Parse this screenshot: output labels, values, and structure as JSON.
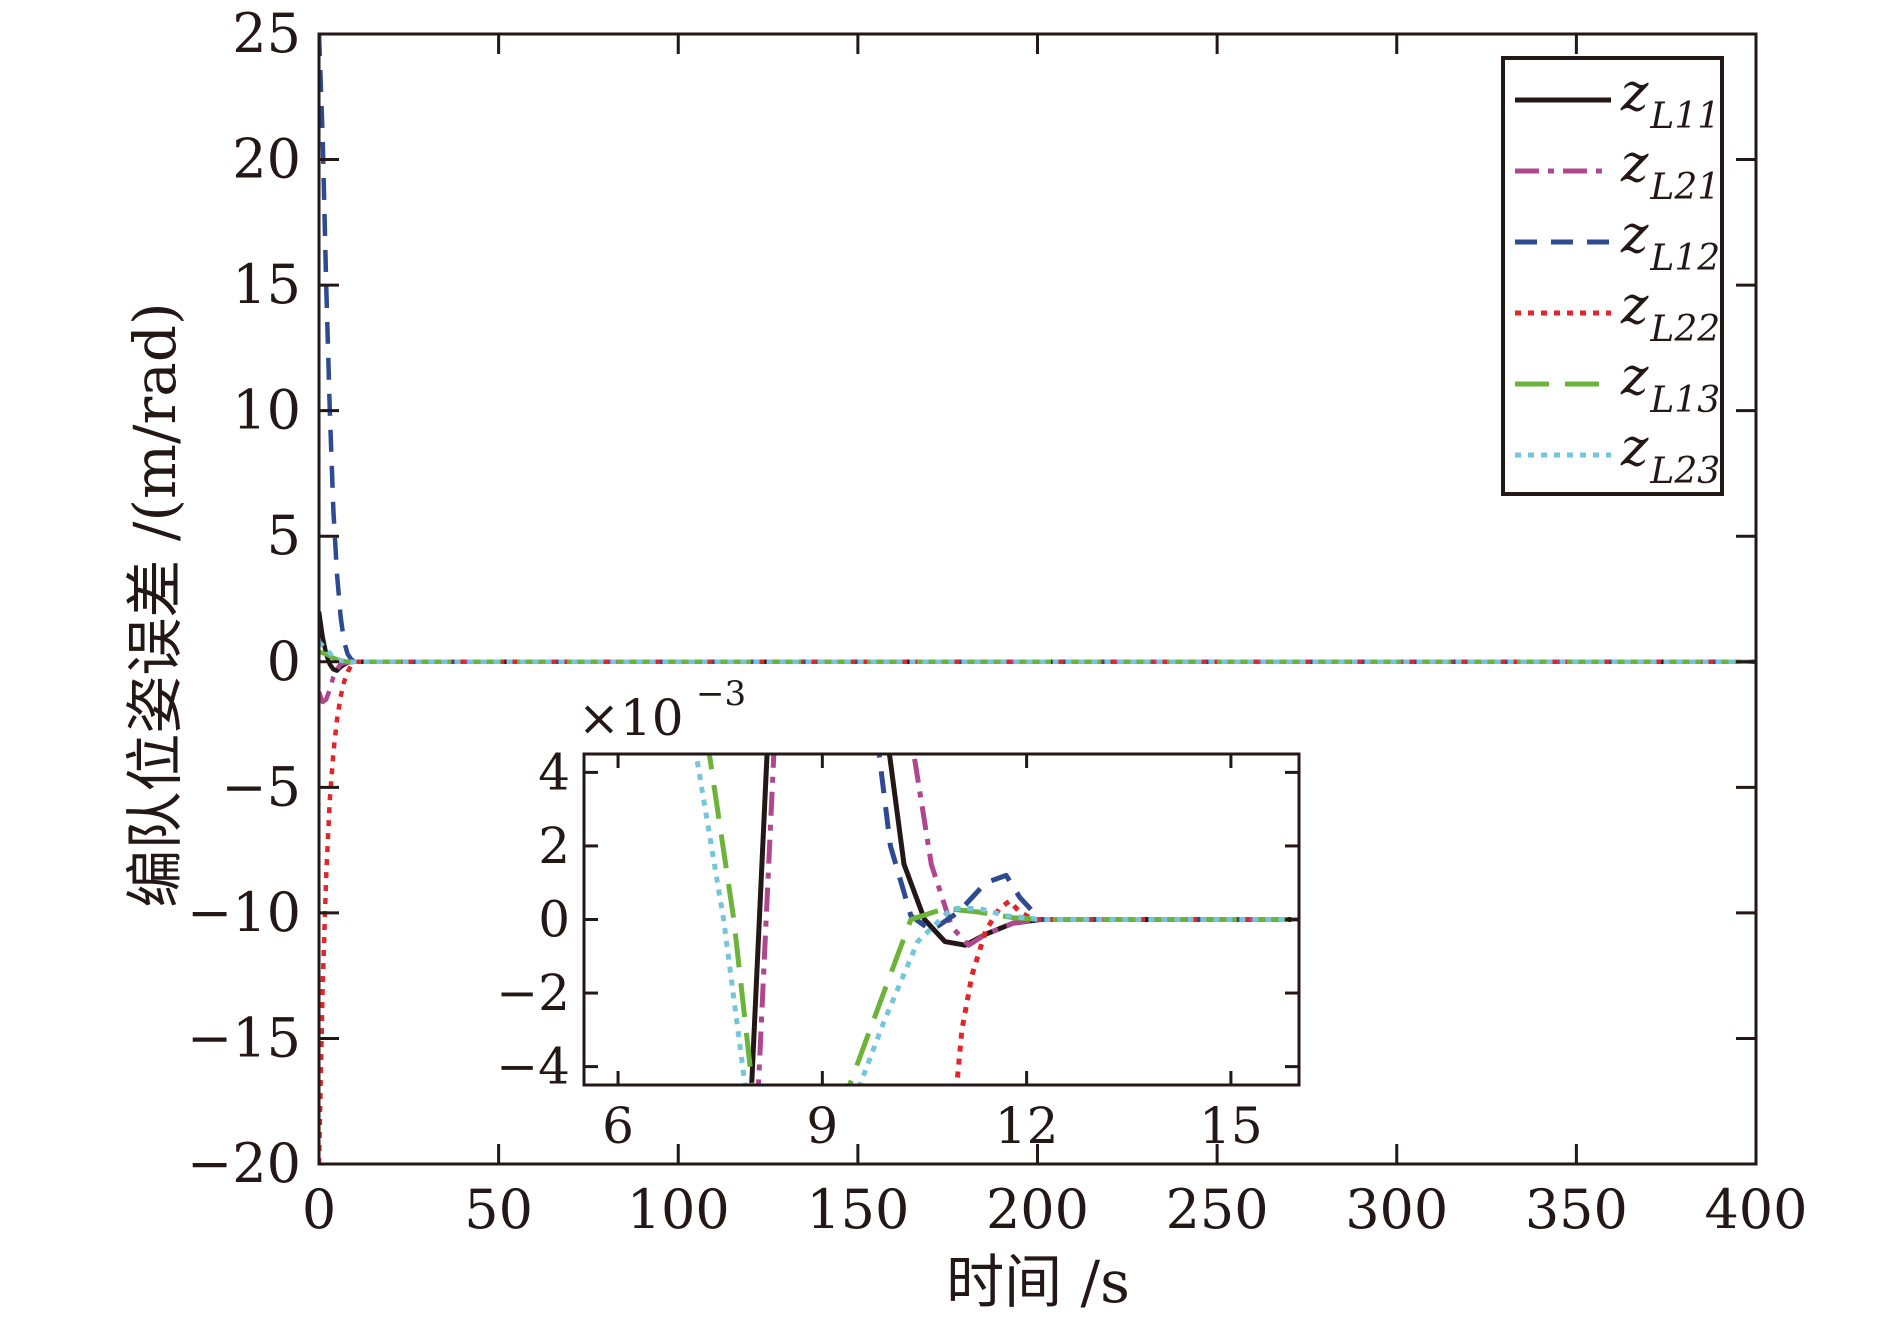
{
  "chart_data": [
    {
      "type": "line",
      "role": "main",
      "xlabel": "时间 /s",
      "ylabel": "编队位姿误差 /(m/rad)",
      "xlim": [
        0,
        400
      ],
      "ylim": [
        -20,
        25
      ],
      "xticks": [
        "0",
        "50",
        "100",
        "150",
        "200",
        "250",
        "300",
        "350",
        "400"
      ],
      "yticks": [
        "25",
        "20",
        "15",
        "10",
        "5",
        "0",
        "−5",
        "−10",
        "−15",
        "−20"
      ],
      "legend_position": "top-right",
      "series": [
        {
          "name": "z_L11",
          "label_main": "z",
          "label_sub": "L11",
          "color": "#231815",
          "dash": "solid",
          "x": [
            0,
            1,
            2,
            3,
            4,
            5,
            6,
            8,
            10,
            400
          ],
          "y": [
            2.0,
            1.0,
            0.3,
            -0.1,
            -0.3,
            -0.35,
            -0.2,
            -0.02,
            0,
            0
          ]
        },
        {
          "name": "z_L21",
          "label_main": "z",
          "label_sub": "L21",
          "color": "#b0478e",
          "dash": "dashdot",
          "x": [
            0,
            1,
            2,
            3,
            4,
            5,
            6,
            8,
            10,
            400
          ],
          "y": [
            -1.2,
            -1.6,
            -1.5,
            -1.1,
            -0.6,
            -0.3,
            -0.1,
            -0.01,
            0,
            0
          ]
        },
        {
          "name": "z_L12",
          "label_main": "z",
          "label_sub": "L12",
          "color": "#2e4a93",
          "dash": "dashed",
          "x": [
            0,
            1,
            2,
            3,
            4,
            5,
            6,
            7,
            8,
            9,
            10,
            400
          ],
          "y": [
            25,
            21,
            15,
            10,
            6,
            3.5,
            1.8,
            0.8,
            0.3,
            0.1,
            0,
            0
          ]
        },
        {
          "name": "z_L22",
          "label_main": "z",
          "label_sub": "L22",
          "color": "#e0262b",
          "dash": "dotted",
          "x": [
            0,
            1,
            2,
            3,
            4,
            5,
            6,
            7,
            8,
            9,
            10,
            400
          ],
          "y": [
            -20,
            -13,
            -8.5,
            -5.5,
            -3.6,
            -2.3,
            -1.4,
            -0.8,
            -0.4,
            -0.15,
            0,
            0
          ]
        },
        {
          "name": "z_L13",
          "label_main": "z",
          "label_sub": "L13",
          "color": "#6bb33a",
          "dash": "longdash",
          "x": [
            0,
            2,
            4,
            6,
            8,
            400
          ],
          "y": [
            0.4,
            0.3,
            0.15,
            0.05,
            0,
            0
          ]
        },
        {
          "name": "z_L23",
          "label_main": "z",
          "label_sub": "L23",
          "color": "#74c6dd",
          "dash": "dotted",
          "x": [
            0,
            2,
            4,
            6,
            8,
            400
          ],
          "y": [
            0.8,
            0.5,
            0.2,
            0.05,
            0,
            0
          ]
        }
      ]
    },
    {
      "type": "line",
      "role": "inset",
      "multiplier_label": "×10",
      "multiplier_exponent": "−3",
      "xlim": [
        5.5,
        16
      ],
      "ylim": [
        -4.5,
        4.5
      ],
      "xticks": [
        "6",
        "9",
        "12",
        "15"
      ],
      "yticks": [
        "4",
        "2",
        "0",
        "−2",
        "−4"
      ],
      "series": [
        {
          "name": "z_L11",
          "color": "#231815",
          "dash": "solid",
          "x": [
            7.95,
            8.2,
            9.95,
            10.2,
            10.5,
            10.8,
            11.1,
            11.4,
            11.8,
            12.2,
            16
          ],
          "y": [
            -5,
            5,
            5,
            1.5,
            0,
            -0.6,
            -0.7,
            -0.4,
            -0.1,
            0,
            0
          ]
        },
        {
          "name": "z_L21",
          "color": "#b0478e",
          "dash": "dashdot",
          "x": [
            8.05,
            8.3,
            10.3,
            10.6,
            10.9,
            11.15,
            11.4,
            11.8,
            12.2,
            16
          ],
          "y": [
            -5,
            5,
            5,
            1.5,
            -0.2,
            -0.7,
            -0.4,
            -0.1,
            0,
            0
          ]
        },
        {
          "name": "z_L12",
          "color": "#2e4a93",
          "dash": "dashed",
          "x": [
            9.8,
            10.0,
            10.3,
            10.6,
            11.0,
            11.4,
            11.7,
            11.9,
            12.2,
            16
          ],
          "y": [
            5,
            2.0,
            0.1,
            -0.3,
            0.2,
            1.0,
            1.2,
            0.6,
            0,
            0
          ]
        },
        {
          "name": "z_L22",
          "color": "#e0262b",
          "dash": "dotted",
          "x": [
            10.95,
            11.05,
            11.2,
            11.4,
            11.6,
            11.75,
            11.9,
            12.1,
            16
          ],
          "y": [
            -5,
            -3.0,
            -1.5,
            -0.3,
            0.3,
            0.5,
            0.2,
            0,
            0
          ]
        },
        {
          "name": "z_L13",
          "color": "#6bb33a",
          "dash": "longdash",
          "x": [
            7.3,
            7.7,
            8.0,
            9.3,
            9.8,
            10.3,
            10.8,
            11.3,
            11.8,
            12.2,
            16
          ],
          "y": [
            5,
            0,
            -5,
            -5,
            -2.5,
            0,
            0.3,
            0.2,
            0.05,
            0,
            0
          ]
        },
        {
          "name": "z_L23",
          "color": "#74c6dd",
          "dash": "dotted",
          "x": [
            7.1,
            7.55,
            7.9,
            9.45,
            9.9,
            10.4,
            10.9,
            11.3,
            11.7,
            12.2,
            16
          ],
          "y": [
            5,
            0,
            -5,
            -5,
            -2.8,
            -0.6,
            0.3,
            0.3,
            0.1,
            0,
            0
          ]
        }
      ]
    }
  ]
}
